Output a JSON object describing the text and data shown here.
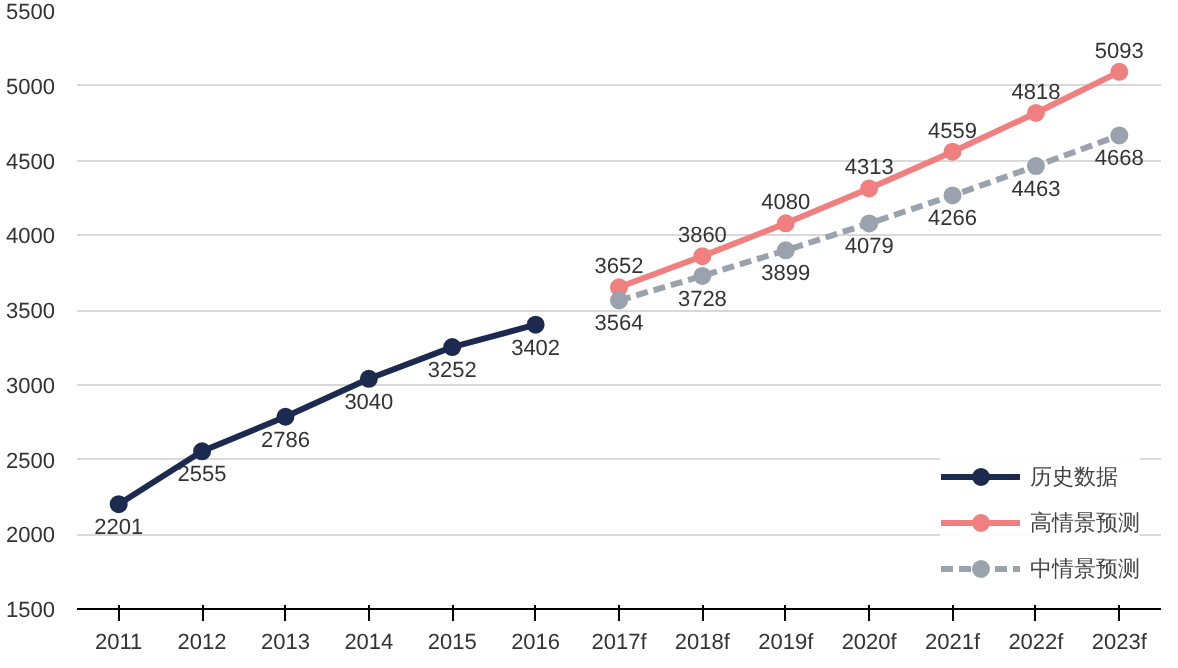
{
  "chart_data": {
    "type": "line",
    "categories": [
      "2011",
      "2012",
      "2013",
      "2014",
      "2015",
      "2016",
      "2017f",
      "2018f",
      "2019f",
      "2020f",
      "2021f",
      "2022f",
      "2023f"
    ],
    "series": [
      {
        "name": "历史数据",
        "color": "#1b2a4e",
        "line_style": "solid",
        "values": [
          2201,
          2555,
          2786,
          3040,
          3252,
          3402,
          null,
          null,
          null,
          null,
          null,
          null,
          null
        ]
      },
      {
        "name": "高情景预测",
        "color": "#f07f7f",
        "line_style": "solid",
        "values": [
          null,
          null,
          null,
          null,
          null,
          null,
          3652,
          3860,
          4080,
          4313,
          4559,
          4818,
          5093
        ]
      },
      {
        "name": "中情景预测",
        "color": "#9aa3ad",
        "line_style": "dashed",
        "values": [
          null,
          null,
          null,
          null,
          null,
          null,
          3564,
          3728,
          3899,
          4079,
          4266,
          4463,
          4668
        ]
      }
    ],
    "ylim": [
      1500,
      5500
    ],
    "yticks": [
      1500,
      2000,
      2500,
      3000,
      3500,
      4000,
      4500,
      5000,
      5500
    ],
    "grid": "y",
    "legend": "bottom right",
    "marker": "circle",
    "data_labels": true
  }
}
